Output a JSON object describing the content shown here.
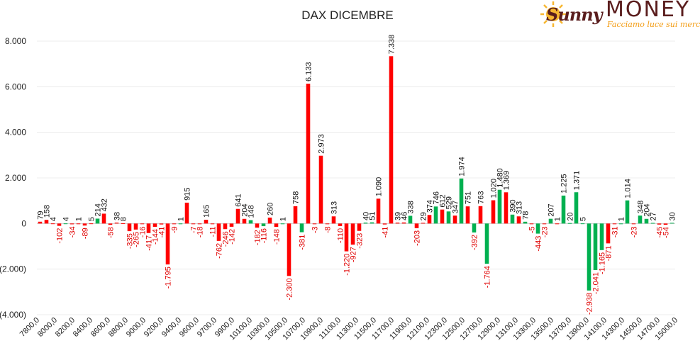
{
  "logo": {
    "script": "Sunny",
    "name": "MONEY",
    "tagline": "Facciamo luce sui mercati",
    "colors": {
      "sun": "#f7b731",
      "text": "#5a1d1d",
      "tagline": "#f39c12"
    }
  },
  "chart_data": {
    "type": "bar",
    "title": "DAX DICEMBRE",
    "xlabel": "",
    "ylabel": "",
    "ylim": [
      -4000,
      8000
    ],
    "yticks": [
      8000,
      6000,
      4000,
      2000,
      0,
      -2000,
      -4000
    ],
    "ytick_labels": [
      "8.000",
      "6.000",
      "4.000",
      "2.000",
      "0",
      "(2.000)",
      "(4.000)"
    ],
    "xtick_labels": [
      "7800,0",
      "8000,0",
      "8200,0",
      "8400,0",
      "8600,0",
      "8800,0",
      "9000,0",
      "9200,0",
      "9400,0",
      "9600,0",
      "9700,0",
      "9900,0",
      "10100,0",
      "10300,0",
      "10500,0",
      "10700,0",
      "10900,0",
      "11100,0",
      "11300,0",
      "11500,0",
      "11700,0",
      "11900,0",
      "12100,0",
      "12300,0",
      "12500,0",
      "12700,0",
      "12900,0",
      "13100,0",
      "13300,0",
      "13500,0",
      "13700,0",
      "13900,0",
      "14100,0",
      "14300,0",
      "14500,0",
      "14700,0",
      "15000,0"
    ],
    "colors": {
      "red": "#ff0000",
      "green": "#00b050"
    },
    "bars": [
      {
        "value": 79,
        "label": "79",
        "color": "red"
      },
      {
        "value": 158,
        "label": "158",
        "color": "red"
      },
      {
        "value": 4,
        "label": "4",
        "color": "red"
      },
      {
        "value": -102,
        "label": "-102",
        "color": "red"
      },
      {
        "value": 4,
        "label": "4",
        "color": "green"
      },
      {
        "value": -34,
        "label": "-34",
        "color": "red"
      },
      {
        "value": 1,
        "label": "1",
        "color": "red"
      },
      {
        "value": -89,
        "label": "-89",
        "color": "red"
      },
      {
        "value": 5,
        "label": "5",
        "color": "red"
      },
      {
        "value": 214,
        "label": "214",
        "color": "green"
      },
      {
        "value": 432,
        "label": "432",
        "color": "red"
      },
      {
        "value": -58,
        "label": "-58",
        "color": "red"
      },
      {
        "value": 38,
        "label": "38",
        "color": "red"
      },
      {
        "value": 8,
        "label": "8",
        "color": "red"
      },
      {
        "value": -335,
        "label": "-335",
        "color": "red"
      },
      {
        "value": -265,
        "label": "-265",
        "color": "red"
      },
      {
        "value": -16,
        "label": "-16",
        "color": "red"
      },
      {
        "value": -417,
        "label": "-417",
        "color": "red"
      },
      {
        "value": -144,
        "label": "-144",
        "color": "red"
      },
      {
        "value": -41,
        "label": "-41",
        "color": "red"
      },
      {
        "value": -1795,
        "label": "-1.795",
        "color": "red"
      },
      {
        "value": -9,
        "label": "-9",
        "color": "red"
      },
      {
        "value": 1,
        "label": "1",
        "color": "green"
      },
      {
        "value": 915,
        "label": "915",
        "color": "red"
      },
      {
        "value": -7,
        "label": "-7",
        "color": "red"
      },
      {
        "value": -18,
        "label": "-18",
        "color": "red"
      },
      {
        "value": 165,
        "label": "165",
        "color": "red"
      },
      {
        "value": -11,
        "label": "-11",
        "color": "red"
      },
      {
        "value": -762,
        "label": "-762",
        "color": "red"
      },
      {
        "value": -246,
        "label": "-246",
        "color": "red"
      },
      {
        "value": -142,
        "label": "-142",
        "color": "red"
      },
      {
        "value": 641,
        "label": "641",
        "color": "red"
      },
      {
        "value": 204,
        "label": "204",
        "color": "red"
      },
      {
        "value": 148,
        "label": "148",
        "color": "green"
      },
      {
        "value": -182,
        "label": "-182",
        "color": "red"
      },
      {
        "value": -116,
        "label": "-116",
        "color": "green"
      },
      {
        "value": 260,
        "label": "260",
        "color": "red"
      },
      {
        "value": -148,
        "label": "-148",
        "color": "red"
      },
      {
        "value": 1,
        "label": "1",
        "color": "green"
      },
      {
        "value": -2300,
        "label": "-2.300",
        "color": "red"
      },
      {
        "value": 758,
        "label": "758",
        "color": "red"
      },
      {
        "value": -381,
        "label": "-381",
        "color": "green"
      },
      {
        "value": 6133,
        "label": "6.133",
        "color": "red"
      },
      {
        "value": -3,
        "label": "-3",
        "color": "red"
      },
      {
        "value": 2973,
        "label": "2.973",
        "color": "red"
      },
      {
        "value": -8,
        "label": "-8",
        "color": "red"
      },
      {
        "value": 313,
        "label": "313",
        "color": "red"
      },
      {
        "value": -110,
        "label": "-110",
        "color": "red"
      },
      {
        "value": -1220,
        "label": "-1.220",
        "color": "red"
      },
      {
        "value": -927,
        "label": "-927",
        "color": "red"
      },
      {
        "value": -323,
        "label": "-323",
        "color": "red"
      },
      {
        "value": 40,
        "label": "40",
        "color": "green"
      },
      {
        "value": 51,
        "label": "51",
        "color": "green"
      },
      {
        "value": 1090,
        "label": "1.090",
        "color": "red"
      },
      {
        "value": -41,
        "label": "-41",
        "color": "red"
      },
      {
        "value": 7338,
        "label": "7.338",
        "color": "red"
      },
      {
        "value": 39,
        "label": "39",
        "color": "red"
      },
      {
        "value": 46,
        "label": "46",
        "color": "red"
      },
      {
        "value": 338,
        "label": "338",
        "color": "green"
      },
      {
        "value": -203,
        "label": "-203",
        "color": "red"
      },
      {
        "value": 29,
        "label": "29",
        "color": "red"
      },
      {
        "value": 374,
        "label": "374",
        "color": "red"
      },
      {
        "value": 746,
        "label": "746",
        "color": "green"
      },
      {
        "value": 612,
        "label": "612",
        "color": "red"
      },
      {
        "value": 529,
        "label": "529",
        "color": "green"
      },
      {
        "value": 347,
        "label": "347",
        "color": "red"
      },
      {
        "value": 1974,
        "label": "1.974",
        "color": "green"
      },
      {
        "value": 751,
        "label": "751",
        "color": "red"
      },
      {
        "value": -392,
        "label": "-392",
        "color": "green"
      },
      {
        "value": 763,
        "label": "763",
        "color": "red"
      },
      {
        "value": -1764,
        "label": "-1.764",
        "color": "green"
      },
      {
        "value": 1020,
        "label": "1.020",
        "color": "red"
      },
      {
        "value": 1480,
        "label": "1.480",
        "color": "green"
      },
      {
        "value": 1369,
        "label": "1.369",
        "color": "red"
      },
      {
        "value": 390,
        "label": "390",
        "color": "green"
      },
      {
        "value": 313,
        "label": "313",
        "color": "red"
      },
      {
        "value": 78,
        "label": "78",
        "color": "green"
      },
      {
        "value": -5,
        "label": "-5",
        "color": "red"
      },
      {
        "value": -443,
        "label": "-443",
        "color": "green"
      },
      {
        "value": -23,
        "label": "-23",
        "color": "red"
      },
      {
        "value": 207,
        "label": "207",
        "color": "green"
      },
      {
        "value": 1,
        "label": "1",
        "color": "red"
      },
      {
        "value": 1225,
        "label": "1.225",
        "color": "green"
      },
      {
        "value": 20,
        "label": "20",
        "color": "green"
      },
      {
        "value": 1371,
        "label": "1.371",
        "color": "green"
      },
      {
        "value": 5,
        "label": "5",
        "color": "green"
      },
      {
        "value": -2938,
        "label": "-2.938",
        "color": "green"
      },
      {
        "value": -2041,
        "label": "-2.041",
        "color": "green"
      },
      {
        "value": -1165,
        "label": "-1.165",
        "color": "green"
      },
      {
        "value": -871,
        "label": "-871",
        "color": "red"
      },
      {
        "value": -31,
        "label": "-31",
        "color": "red"
      },
      {
        "value": 1,
        "label": "1",
        "color": "green"
      },
      {
        "value": 1014,
        "label": "1.014",
        "color": "green"
      },
      {
        "value": -23,
        "label": "-23",
        "color": "red"
      },
      {
        "value": 348,
        "label": "348",
        "color": "green"
      },
      {
        "value": 204,
        "label": "204",
        "color": "green"
      },
      {
        "value": 27,
        "label": "27",
        "color": "green"
      },
      {
        "value": -45,
        "label": "-45",
        "color": "red"
      },
      {
        "value": -54,
        "label": "-54",
        "color": "red"
      },
      {
        "value": 30,
        "label": "30",
        "color": "green"
      }
    ],
    "grid": true,
    "legend": "none"
  }
}
